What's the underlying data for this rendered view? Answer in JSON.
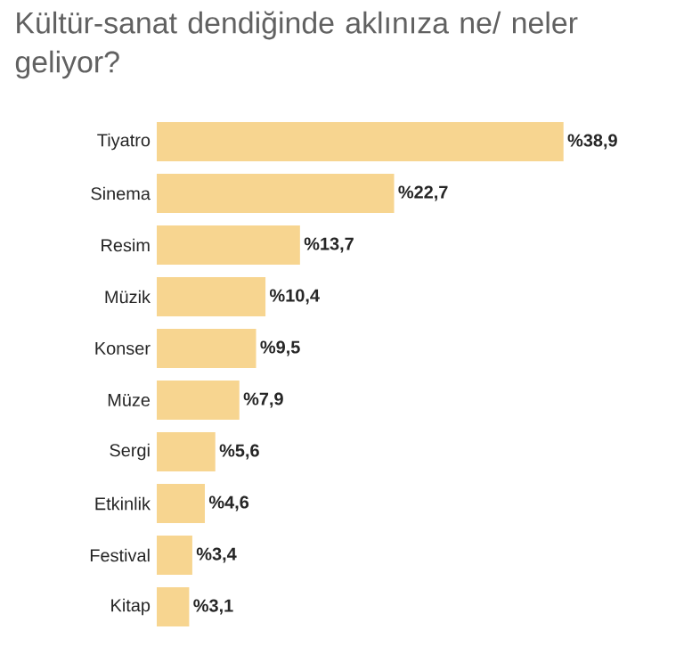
{
  "chart_data": {
    "type": "bar",
    "orientation": "horizontal",
    "title": "Kültür-sanat dendiğinde aklınıza ne/ neler geliyor?",
    "categories": [
      "Tiyatro",
      "Sinema",
      "Resim",
      "Müzik",
      "Konser",
      "Müze",
      "Sergi",
      "Etkinlik",
      "Festival",
      "Kitap"
    ],
    "values": [
      38.9,
      22.7,
      13.7,
      10.4,
      9.5,
      7.9,
      5.6,
      4.6,
      3.4,
      3.1
    ],
    "value_labels": [
      "%38,9",
      "%22,7",
      "%13,7",
      "%10,4",
      "%9,5",
      "%7,9",
      "%5,6",
      "%4,6",
      "%3,4",
      "%3,1"
    ],
    "color": "#f7d590"
  }
}
